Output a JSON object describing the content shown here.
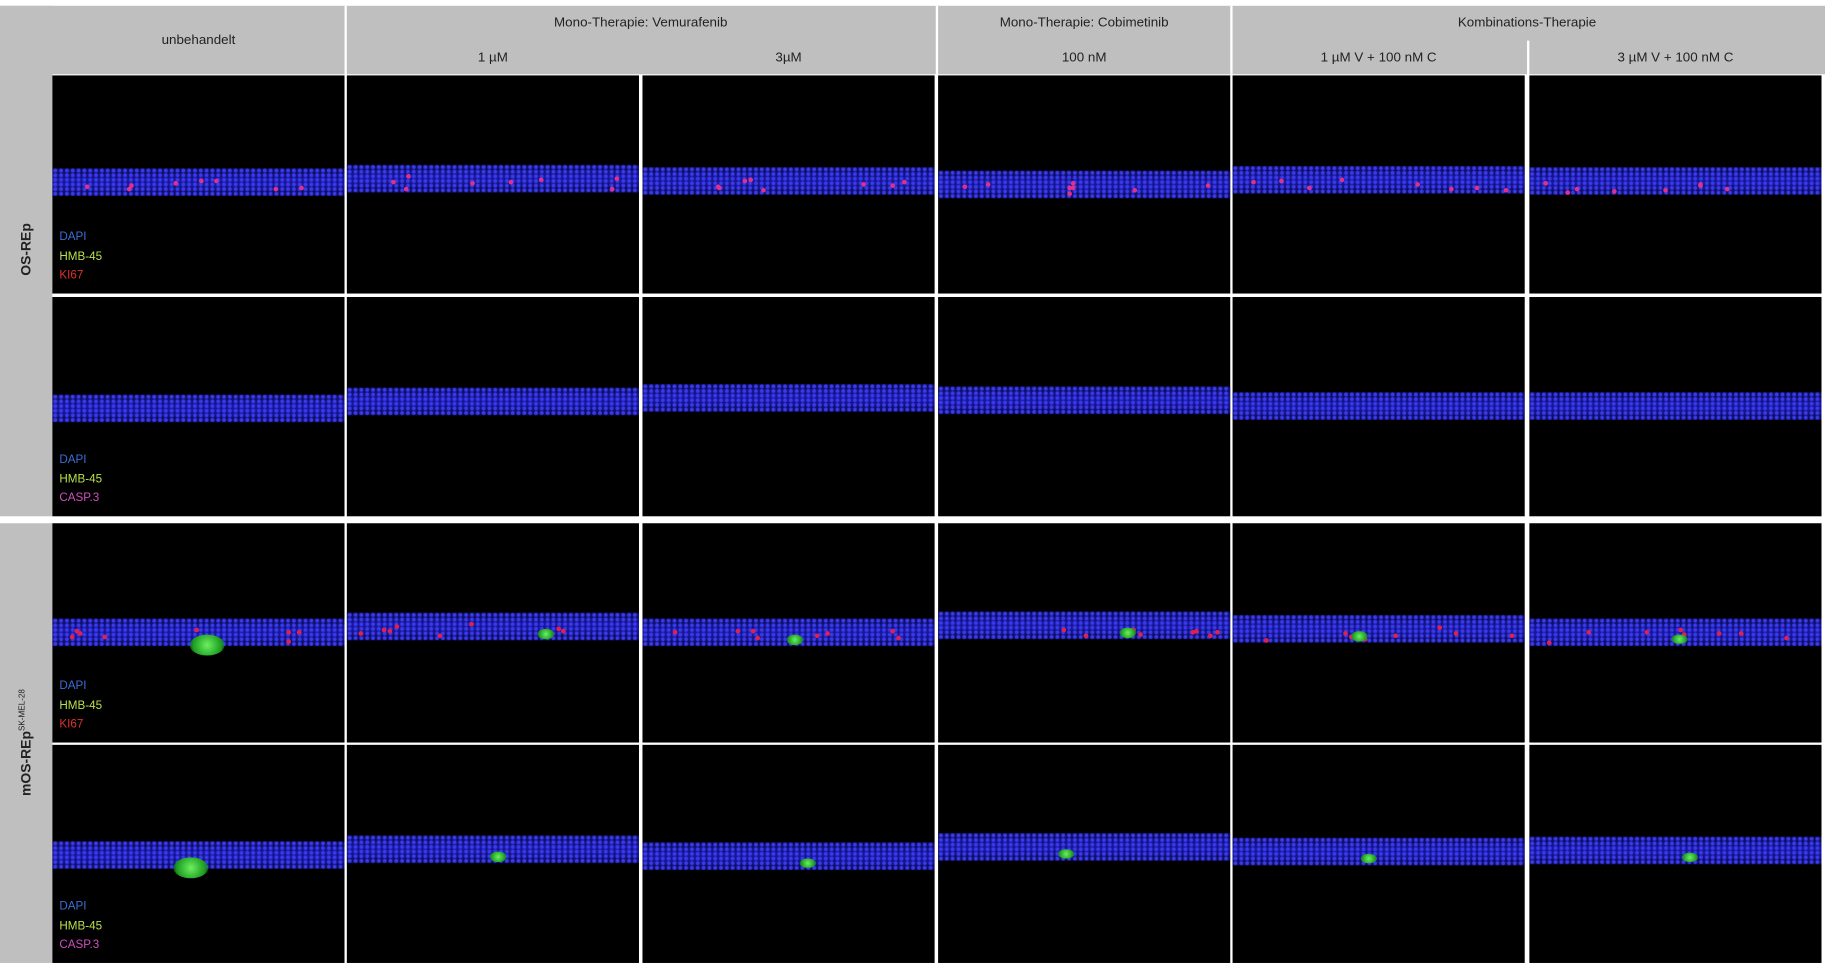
{
  "header": {
    "groups": [
      {
        "title": "unbehandelt",
        "doses": []
      },
      {
        "title": "Mono-Therapie: Vemurafenib",
        "doses": [
          "1 µM",
          "3µM"
        ]
      },
      {
        "title": "Mono-Therapie: Cobimetinib",
        "doses": [
          "100 nM"
        ]
      },
      {
        "title": "Kombinations-Therapie",
        "doses": [
          "1 µM V + 100 nM C",
          "3 µM V + 100 nM C"
        ]
      }
    ]
  },
  "rows": [
    {
      "label": "OS-REp",
      "panels": [
        {
          "legend": [
            "DAPI",
            "HMB-45",
            "KI67"
          ]
        },
        {
          "legend": [
            "DAPI",
            "HMB-45",
            "CASP.3"
          ]
        }
      ]
    },
    {
      "label": "mOS-REp",
      "label_superscript": "SK-MEL-28",
      "panels": [
        {
          "legend": [
            "DAPI",
            "HMB-45",
            "KI67"
          ]
        },
        {
          "legend": [
            "DAPI",
            "HMB-45",
            "CASP.3"
          ]
        }
      ]
    }
  ]
}
